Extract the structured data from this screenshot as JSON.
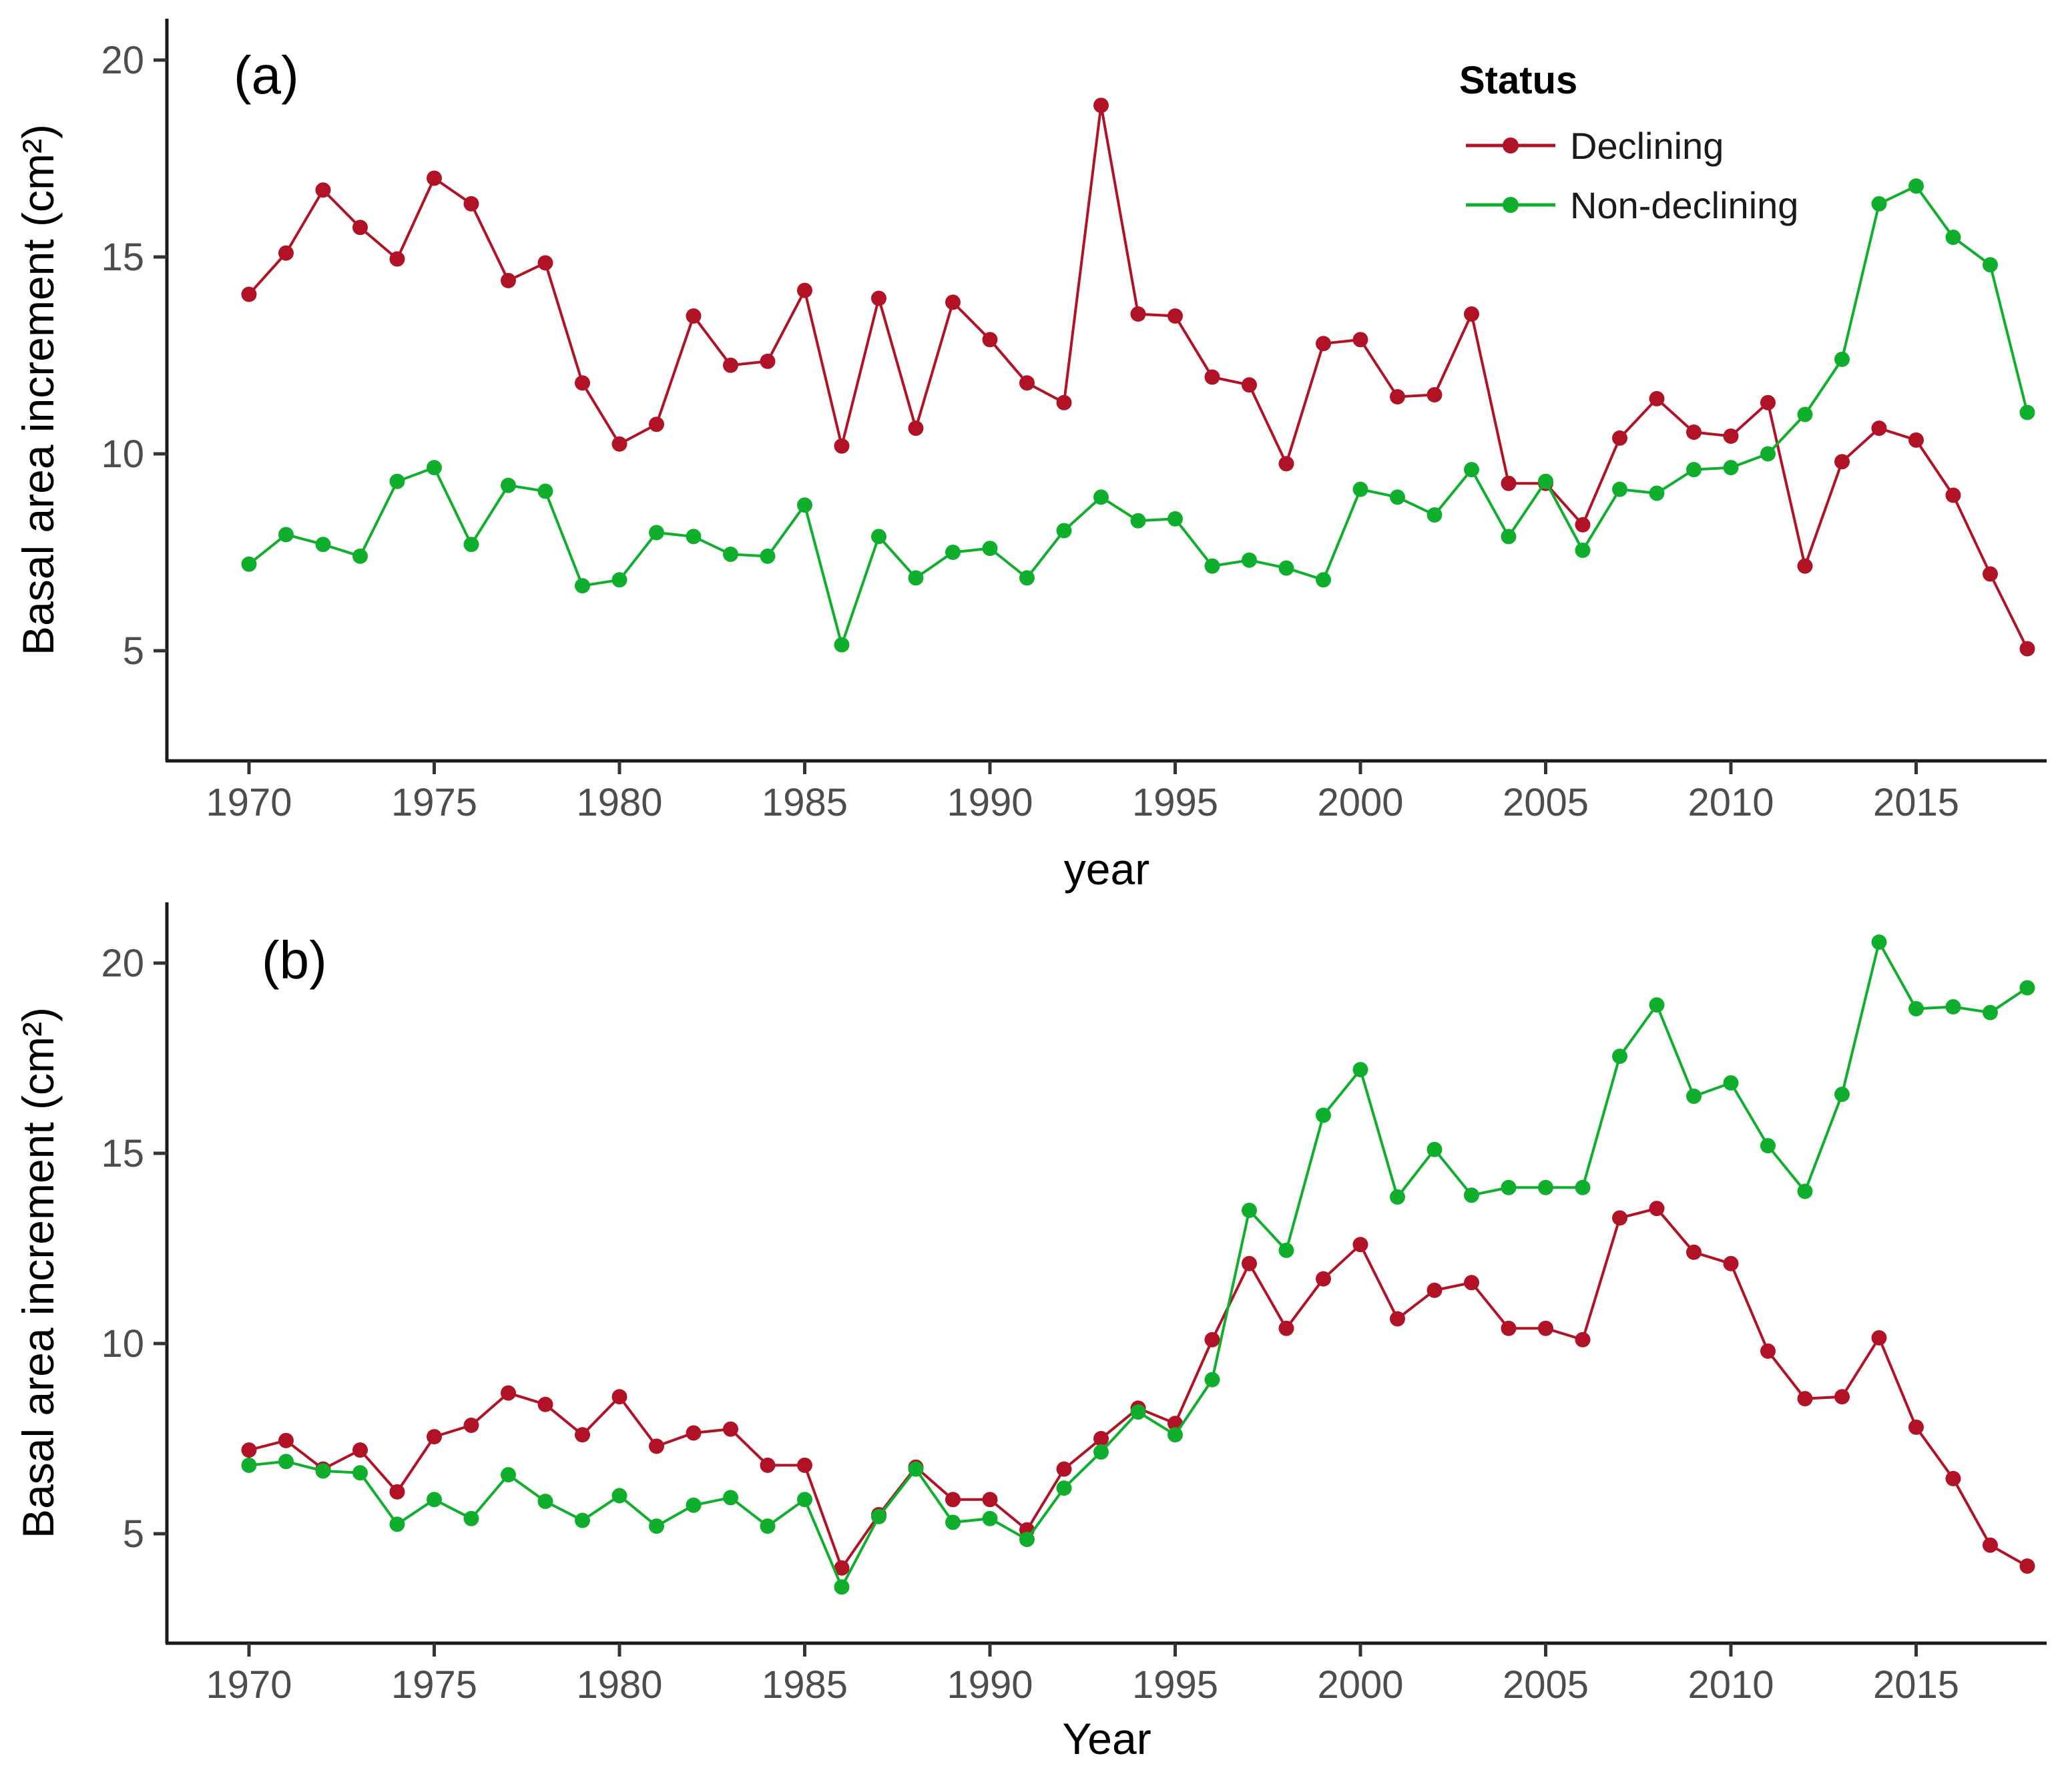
{
  "figure": {
    "background": "#ffffff"
  },
  "panels": [
    {
      "tag": "(a)",
      "xlabel": "year",
      "ylabel": "Basal area increment (cm²)"
    },
    {
      "tag": "(b)",
      "xlabel": "Year",
      "ylabel": "Basal area increment (cm²)"
    }
  ],
  "legend": {
    "title": "Status",
    "items": [
      {
        "label": "Declining",
        "color": "#B11226"
      },
      {
        "label": "Non-declining",
        "color": "#0FAF2D"
      }
    ]
  },
  "axis": {
    "tick_label_color": "#4d4d4d",
    "line_color": "#1a1a1a"
  },
  "chart_data": [
    {
      "type": "line",
      "title": "(a)",
      "xlabel": "year",
      "ylabel": "Basal area increment (cm²)",
      "grid": false,
      "legend_position": "top-right-inside",
      "xticks": [
        1970,
        1975,
        1980,
        1985,
        1990,
        1995,
        2000,
        2005,
        2010,
        2015
      ],
      "yticks": [
        5,
        10,
        15,
        20
      ],
      "ylim": [
        2.2,
        21.2
      ],
      "x": [
        1970,
        1971,
        1972,
        1973,
        1974,
        1975,
        1976,
        1977,
        1978,
        1979,
        1980,
        1981,
        1982,
        1983,
        1984,
        1985,
        1986,
        1987,
        1988,
        1989,
        1990,
        1991,
        1992,
        1993,
        1994,
        1995,
        1996,
        1997,
        1998,
        1999,
        2000,
        2001,
        2002,
        2003,
        2004,
        2005,
        2006,
        2007,
        2008,
        2009,
        2010,
        2011,
        2012,
        2013,
        2014,
        2015,
        2016,
        2017,
        2018
      ],
      "series": [
        {
          "name": "Declining",
          "color": "#B11226",
          "values": [
            14.05,
            15.1,
            16.7,
            15.75,
            14.95,
            17.0,
            16.35,
            14.4,
            14.85,
            11.8,
            10.25,
            10.75,
            13.5,
            12.25,
            12.35,
            14.15,
            10.2,
            13.95,
            10.65,
            13.85,
            12.9,
            11.8,
            11.3,
            18.85,
            13.55,
            13.5,
            11.95,
            11.75,
            9.75,
            12.8,
            12.9,
            11.45,
            11.5,
            13.55,
            9.25,
            9.25,
            8.2,
            10.4,
            11.4,
            10.55,
            10.45,
            11.3,
            7.15,
            9.8,
            10.65,
            10.35,
            8.95,
            6.95,
            5.05
          ]
        },
        {
          "name": "Non-declining",
          "color": "#0FAF2D",
          "values": [
            7.2,
            7.95,
            7.7,
            7.4,
            9.3,
            9.65,
            7.7,
            9.2,
            9.05,
            6.65,
            6.8,
            8.0,
            7.9,
            7.45,
            7.4,
            8.7,
            5.15,
            7.9,
            6.85,
            7.5,
            7.6,
            6.85,
            8.05,
            8.9,
            8.3,
            8.35,
            7.15,
            7.3,
            7.1,
            6.8,
            9.1,
            8.9,
            8.45,
            9.6,
            7.9,
            9.3,
            7.55,
            9.1,
            9.0,
            9.6,
            9.65,
            10.0,
            11.0,
            12.4,
            16.35,
            16.8,
            15.5,
            14.8,
            11.05
          ]
        }
      ]
    },
    {
      "type": "line",
      "title": "(b)",
      "xlabel": "Year",
      "ylabel": "Basal area increment (cm²)",
      "grid": false,
      "legend_position": "none",
      "xticks": [
        1970,
        1975,
        1980,
        1985,
        1990,
        1995,
        2000,
        2005,
        2010,
        2015
      ],
      "yticks": [
        5,
        10,
        15,
        20
      ],
      "ylim": [
        2.1,
        21.5
      ],
      "x": [
        1970,
        1971,
        1972,
        1973,
        1974,
        1975,
        1976,
        1977,
        1978,
        1979,
        1980,
        1981,
        1982,
        1983,
        1984,
        1985,
        1986,
        1987,
        1988,
        1989,
        1990,
        1991,
        1992,
        1993,
        1994,
        1995,
        1996,
        1997,
        1998,
        1999,
        2000,
        2001,
        2002,
        2003,
        2004,
        2005,
        2006,
        2007,
        2008,
        2009,
        2010,
        2011,
        2012,
        2013,
        2014,
        2015,
        2016,
        2017,
        2018
      ],
      "series": [
        {
          "name": "Declining",
          "color": "#B11226",
          "values": [
            7.2,
            7.45,
            6.7,
            7.2,
            6.1,
            7.55,
            7.85,
            8.7,
            8.4,
            7.6,
            8.6,
            7.3,
            7.65,
            7.75,
            6.8,
            6.8,
            4.1,
            5.5,
            6.75,
            5.9,
            5.9,
            5.1,
            6.7,
            7.5,
            8.3,
            7.9,
            10.1,
            12.1,
            10.4,
            11.7,
            12.6,
            10.65,
            11.4,
            11.6,
            10.4,
            10.4,
            10.1,
            13.3,
            13.55,
            12.4,
            12.1,
            9.8,
            8.55,
            8.6,
            10.15,
            7.8,
            6.45,
            4.7,
            4.15
          ]
        },
        {
          "name": "Non-declining",
          "color": "#0FAF2D",
          "values": [
            6.8,
            6.9,
            6.65,
            6.6,
            5.25,
            5.9,
            5.4,
            6.55,
            5.85,
            5.35,
            6.0,
            5.2,
            5.75,
            5.95,
            5.2,
            5.9,
            3.6,
            5.45,
            6.7,
            5.3,
            5.4,
            4.85,
            6.2,
            7.15,
            8.2,
            7.6,
            9.05,
            13.5,
            12.45,
            16.0,
            17.2,
            13.85,
            15.1,
            13.9,
            14.1,
            14.1,
            14.1,
            17.55,
            18.9,
            16.5,
            16.85,
            15.2,
            14.0,
            16.55,
            20.55,
            18.8,
            18.85,
            18.7,
            19.35
          ]
        }
      ]
    }
  ]
}
